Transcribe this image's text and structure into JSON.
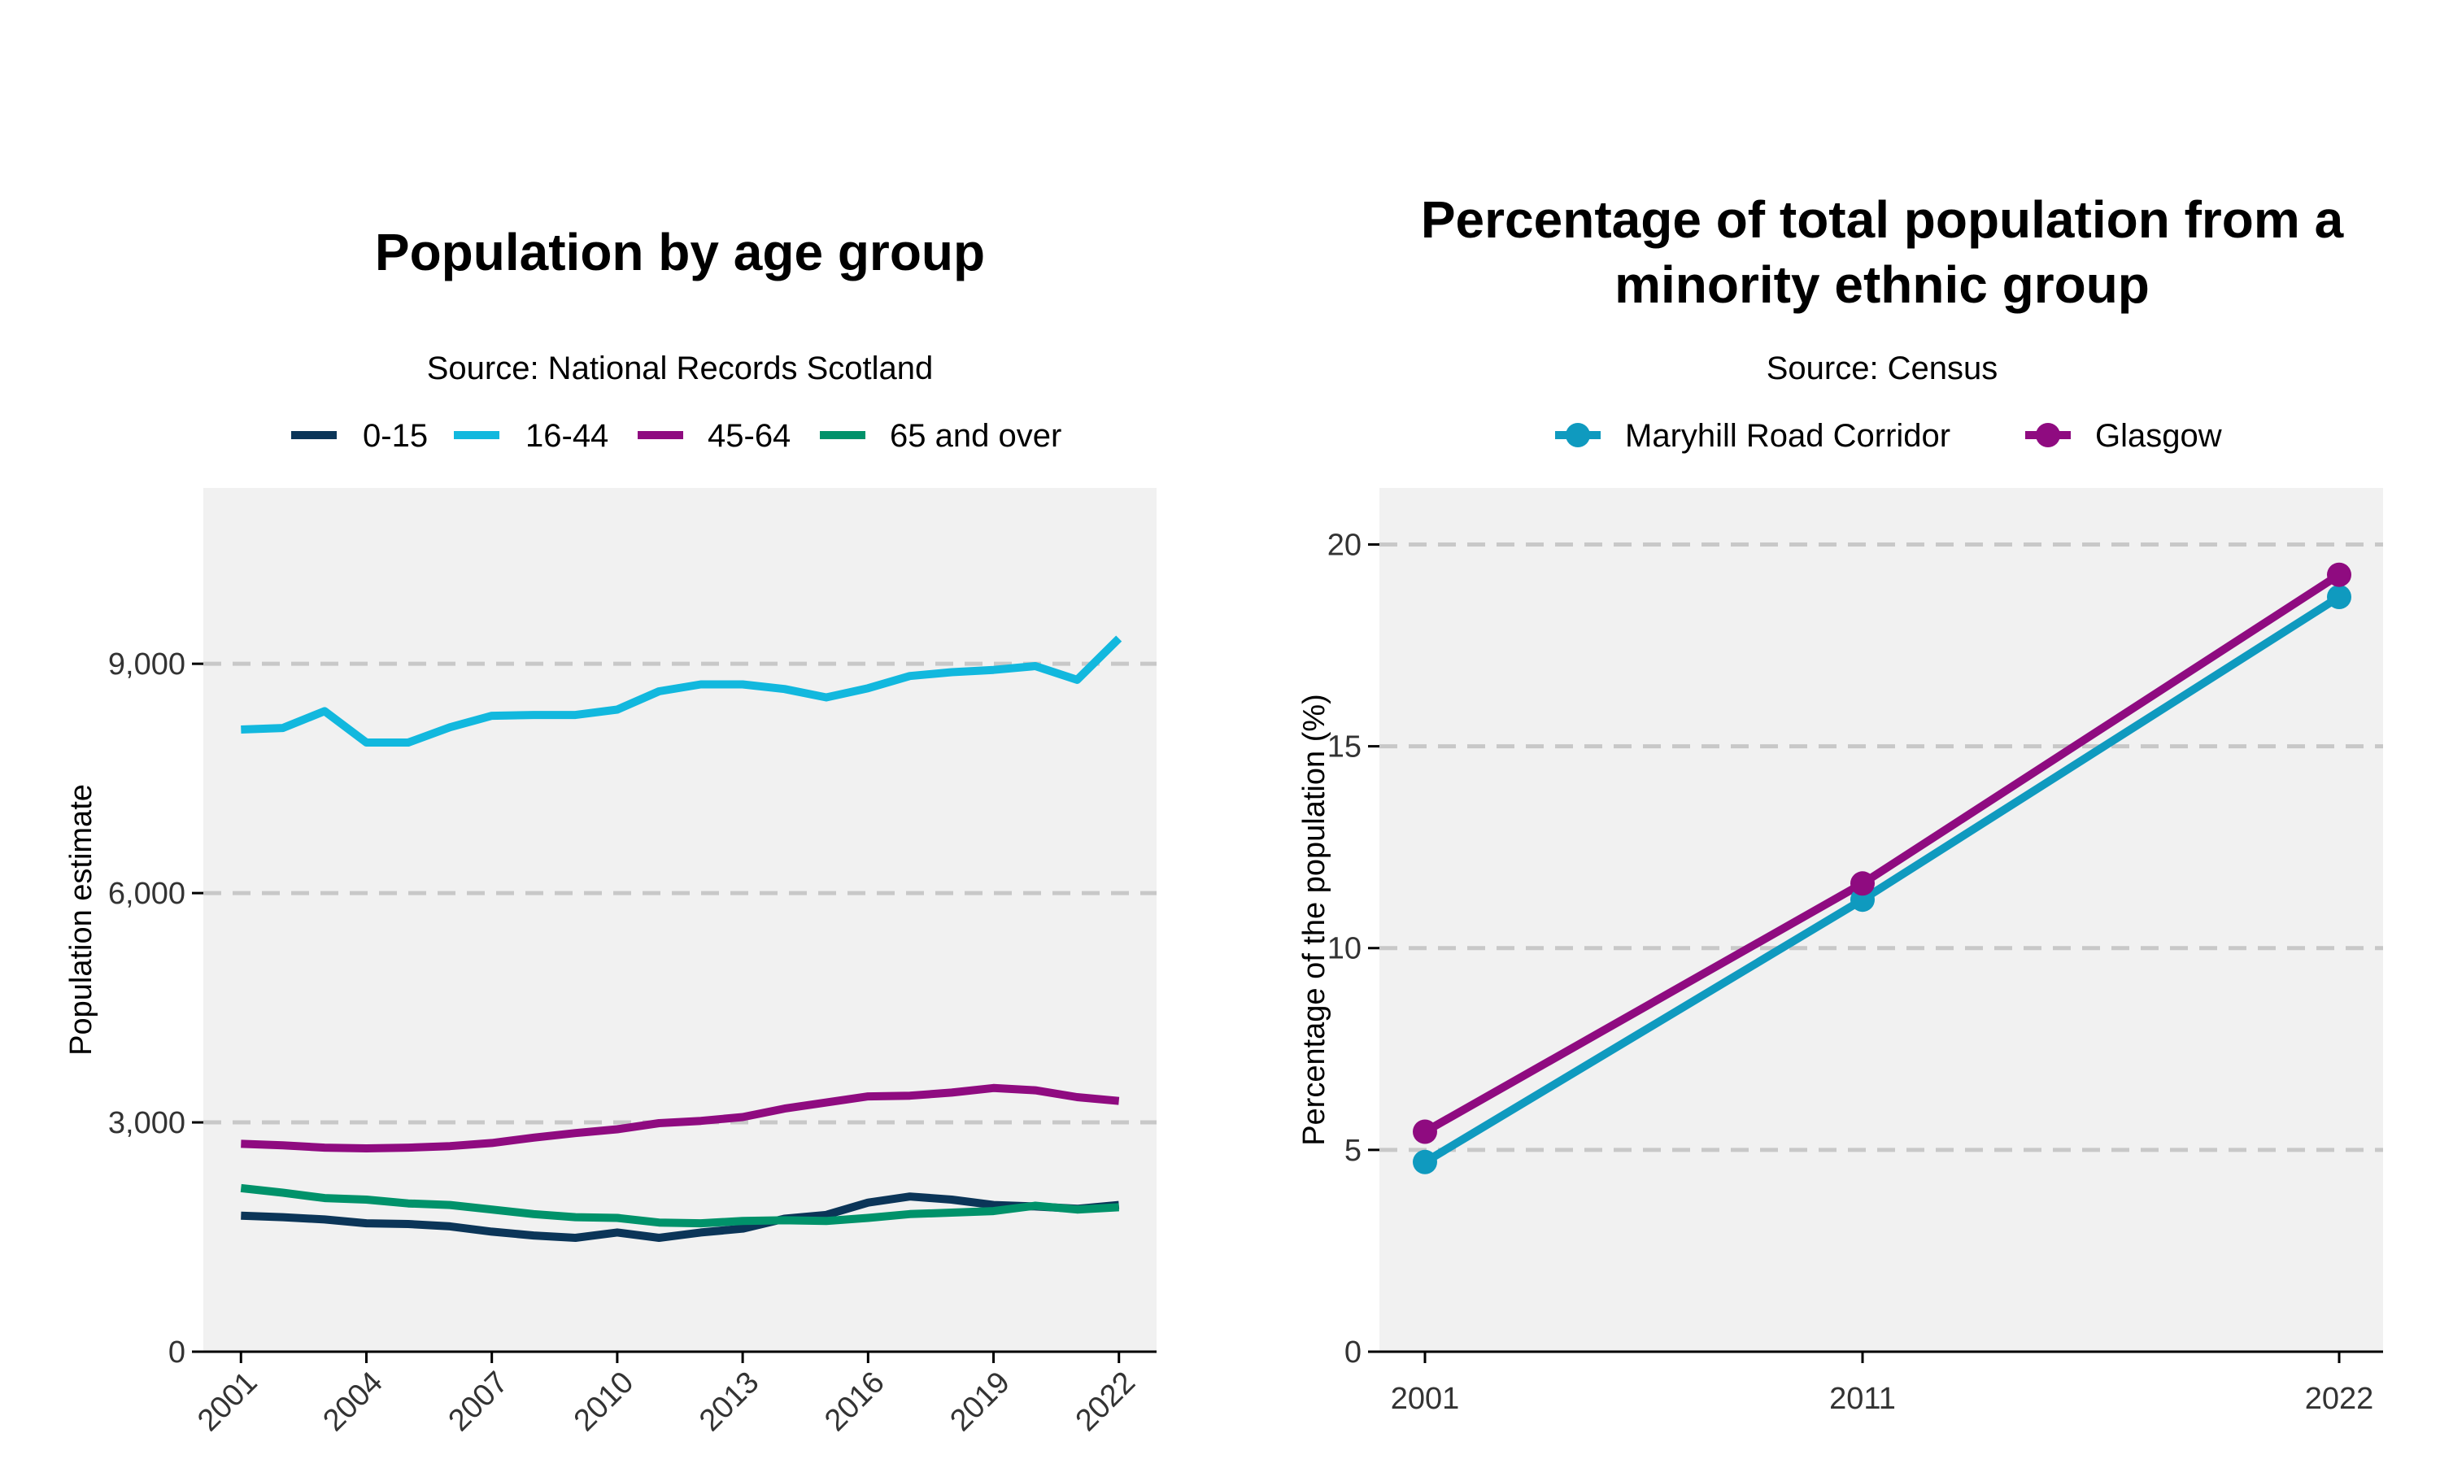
{
  "chart_data": [
    {
      "type": "line",
      "title": "Population by age group",
      "subtitle": "Source: National Records Scotland",
      "xlabel": "",
      "ylabel": "Population estimate",
      "x": [
        2001,
        2002,
        2003,
        2004,
        2005,
        2006,
        2007,
        2008,
        2009,
        2010,
        2011,
        2012,
        2013,
        2014,
        2015,
        2016,
        2017,
        2018,
        2019,
        2020,
        2021,
        2022
      ],
      "x_ticks": [
        "2001",
        "2004",
        "2007",
        "2010",
        "2013",
        "2016",
        "2019",
        "2022"
      ],
      "y_ticks": [
        "0",
        "3,000",
        "6,000",
        "9,000"
      ],
      "y_tick_values": [
        0,
        3000,
        6000,
        9000
      ],
      "ylim": [
        0,
        11300
      ],
      "xlim": [
        2000.1,
        2022.9
      ],
      "grid": "horizontal dashed",
      "legend_position": "top",
      "series": [
        {
          "name": "0-15",
          "color": "#0b3558",
          "values": [
            1780,
            1760,
            1730,
            1680,
            1670,
            1640,
            1570,
            1520,
            1490,
            1560,
            1490,
            1560,
            1610,
            1740,
            1790,
            1950,
            2030,
            1990,
            1920,
            1900,
            1870,
            1920
          ]
        },
        {
          "name": "16-44",
          "color": "#12b8de",
          "values": [
            8140,
            8160,
            8380,
            7970,
            7970,
            8170,
            8320,
            8330,
            8330,
            8400,
            8640,
            8730,
            8730,
            8670,
            8560,
            8680,
            8840,
            8890,
            8920,
            8970,
            8790,
            9330
          ]
        },
        {
          "name": "45-64",
          "color": "#8f0b80",
          "values": [
            2720,
            2700,
            2670,
            2660,
            2670,
            2690,
            2730,
            2800,
            2860,
            2910,
            2990,
            3020,
            3070,
            3180,
            3260,
            3340,
            3350,
            3390,
            3450,
            3420,
            3330,
            3280
          ]
        },
        {
          "name": "65 and over",
          "color": "#00926a",
          "values": [
            2140,
            2080,
            2010,
            1990,
            1940,
            1920,
            1860,
            1800,
            1760,
            1750,
            1690,
            1680,
            1710,
            1720,
            1710,
            1750,
            1800,
            1820,
            1840,
            1910,
            1860,
            1890
          ]
        }
      ]
    },
    {
      "type": "line",
      "title": "Percentage of total population from a minority ethnic group",
      "title_lines": [
        "Percentage of total population from a",
        "minority ethnic group"
      ],
      "subtitle": "Source: Census",
      "xlabel": "",
      "ylabel": "Percentage of the population (%)",
      "categories": [
        "2001",
        "2011",
        "2022"
      ],
      "y_ticks": [
        "0",
        "5",
        "10",
        "15",
        "20"
      ],
      "y_tick_values": [
        0,
        5,
        10,
        15,
        20
      ],
      "ylim": [
        0,
        21.4
      ],
      "grid": "horizontal dashed",
      "legend_position": "top",
      "series": [
        {
          "name": "Maryhill Road Corridor",
          "color": "#0f9abf",
          "values": [
            4.7,
            11.2,
            18.7
          ]
        },
        {
          "name": "Glasgow",
          "color": "#8f0b80",
          "values": [
            5.45,
            11.6,
            19.25
          ]
        }
      ]
    }
  ]
}
